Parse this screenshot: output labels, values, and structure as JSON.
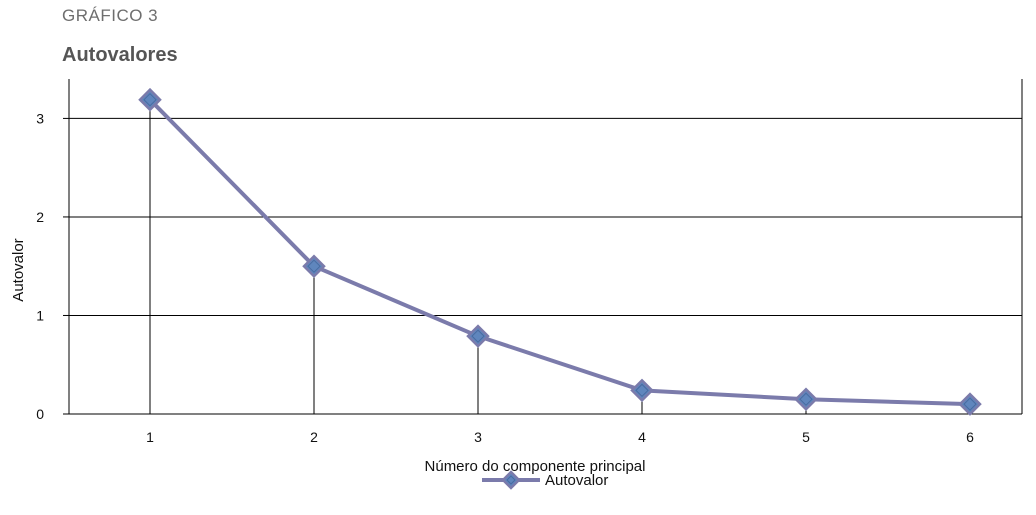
{
  "header": {
    "kicker": "GRÁFICO 3",
    "title": "Autovalores"
  },
  "colors": {
    "series": "#7b7bab",
    "marker": "#5f86bd",
    "grid": "#000000"
  },
  "chart_data": {
    "type": "line",
    "title": "Autovalores",
    "xlabel": "Número do componente principal",
    "ylabel": "Autovalor",
    "x": [
      1,
      2,
      3,
      4,
      5,
      6
    ],
    "categories": [
      "1",
      "2",
      "3",
      "4",
      "5",
      "6"
    ],
    "series": [
      {
        "name": "Autovalor",
        "values": [
          3.19,
          1.5,
          0.79,
          0.24,
          0.15,
          0.1
        ]
      }
    ],
    "ylim": [
      0,
      3.4
    ],
    "yticks": [
      0,
      1,
      2,
      3
    ],
    "grid": "horizontal",
    "drop_lines": true,
    "legend": "bottom-center",
    "marker": "diamond"
  }
}
